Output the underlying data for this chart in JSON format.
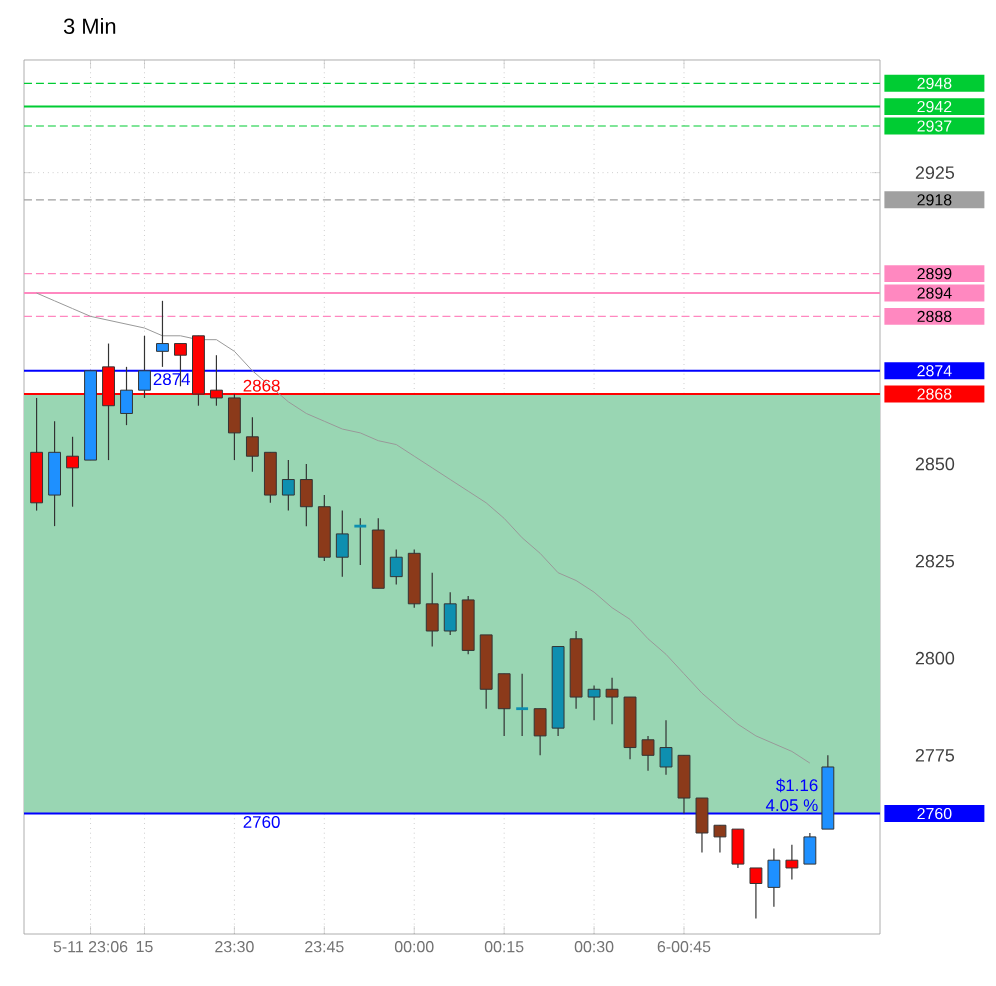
{
  "chart_data": {
    "type": "candlestick",
    "title": "3 Min",
    "categories": [
      null,
      null,
      null,
      "5-11 23:06",
      null,
      null,
      "15",
      null,
      null,
      null,
      null,
      "23:30",
      null,
      null,
      null,
      null,
      "23:45",
      null,
      null,
      null,
      null,
      "00:00",
      null,
      null,
      null,
      null,
      "00:15",
      null,
      null,
      null,
      null,
      "00:30",
      null,
      null,
      null,
      null,
      "6-00:45",
      null,
      null,
      null,
      null,
      null,
      null,
      null,
      null
    ],
    "ohlc": [
      [
        2853,
        2867,
        2838,
        2840
      ],
      [
        2842,
        2861,
        2834,
        2853
      ],
      [
        2852,
        2857,
        2839,
        2849
      ],
      [
        2851,
        2874,
        2851,
        2874
      ],
      [
        2875,
        2881,
        2851,
        2865
      ],
      [
        2863,
        2875,
        2860,
        2869
      ],
      [
        2869,
        2883,
        2867,
        2874
      ],
      [
        2879,
        2892,
        2875,
        2881
      ],
      [
        2881,
        2881,
        2870,
        2878
      ],
      [
        2883,
        2883,
        2865,
        2868
      ],
      [
        2869,
        2878,
        2865,
        2867
      ],
      [
        2867,
        2868,
        2851,
        2858
      ],
      [
        2857,
        2862,
        2848,
        2852
      ],
      [
        2853,
        2853,
        2840,
        2842
      ],
      [
        2842,
        2851,
        2838,
        2846
      ],
      [
        2846,
        2850,
        2834,
        2839
      ],
      [
        2839,
        2842,
        2825,
        2826
      ],
      [
        2826,
        2838,
        2821,
        2832
      ],
      [
        2834,
        2836,
        2824,
        2834
      ],
      [
        2833,
        2836,
        2818,
        2818
      ],
      [
        2821,
        2828,
        2819,
        2826
      ],
      [
        2827,
        2828,
        2813,
        2814
      ],
      [
        2814,
        2822,
        2803,
        2807
      ],
      [
        2807,
        2817,
        2806,
        2814
      ],
      [
        2815,
        2816,
        2801,
        2802
      ],
      [
        2806,
        2806,
        2787,
        2792
      ],
      [
        2796,
        2796,
        2780,
        2787
      ],
      [
        2787,
        2796,
        2780,
        2787
      ],
      [
        2787,
        2787,
        2775,
        2780
      ],
      [
        2782,
        2803,
        2780,
        2803
      ],
      [
        2805,
        2807,
        2787,
        2790
      ],
      [
        2790,
        2793,
        2784,
        2792
      ],
      [
        2792,
        2795,
        2783,
        2790
      ],
      [
        2790,
        2790,
        2774,
        2777
      ],
      [
        2779,
        2780,
        2771,
        2775
      ],
      [
        2772,
        2784,
        2770,
        2777
      ],
      [
        2775,
        2775,
        2760,
        2764
      ],
      [
        2764,
        2764,
        2750,
        2755
      ],
      [
        2757,
        2757,
        2750,
        2754
      ],
      [
        2756,
        2756,
        2746,
        2747
      ],
      [
        2746,
        2746,
        2733,
        2742
      ],
      [
        2741,
        2751,
        2736,
        2748
      ],
      [
        2748,
        2752,
        2743,
        2746
      ],
      [
        2747,
        2755,
        2747,
        2754
      ],
      [
        2756,
        2775,
        2756,
        2772
      ]
    ],
    "colors": [
      "#ff0000",
      "#1e90ff",
      "#ff0000",
      "#1e90ff",
      "#ff0000",
      "#1e90ff",
      "#1e90ff",
      "#1e90ff",
      "#ff0000",
      "#ff0000",
      "#ff0000",
      "#8b3a1a",
      "#8b3a1a",
      "#8b3a1a",
      "#0e8fb0",
      "#8b3a1a",
      "#8b3a1a",
      "#0e8fb0",
      "#0e8fb0",
      "#8b3a1a",
      "#0e8fb0",
      "#8b3a1a",
      "#8b3a1a",
      "#0e8fb0",
      "#8b3a1a",
      "#8b3a1a",
      "#8b3a1a",
      "#0e8fb0",
      "#8b3a1a",
      "#0e8fb0",
      "#8b3a1a",
      "#0e8fb0",
      "#8b3a1a",
      "#8b3a1a",
      "#8b3a1a",
      "#0e8fb0",
      "#8b3a1a",
      "#8b3a1a",
      "#8b3a1a",
      "#ff0000",
      "#ff0000",
      "#1e90ff",
      "#ff0000",
      "#1e90ff",
      "#1e90ff"
    ],
    "series": [
      {
        "type": "line",
        "color": "#999999",
        "values": [
          2894,
          2892,
          2890,
          2888,
          2887,
          2886,
          2885,
          2883,
          2883,
          2882,
          2882,
          2879,
          2874,
          2870,
          2866,
          2863,
          2861,
          2859,
          2858,
          2856,
          2855,
          2852,
          2849,
          2846,
          2843,
          2840,
          2836,
          2831,
          2827,
          2822,
          2820,
          2817,
          2813,
          2810,
          2805,
          2801,
          2796,
          2791,
          2787,
          2783,
          2780,
          2778,
          2776,
          2773,
          null
        ]
      }
    ],
    "ylim": [
      2729,
      2954
    ],
    "yticks": [
      2925,
      2850,
      2825,
      2800,
      2775
    ],
    "grid": true,
    "bands": [
      {
        "axis": "y",
        "from": 2760,
        "to": 2868,
        "color": "#99d6b3"
      }
    ],
    "ref_lines": [
      {
        "axis": "y",
        "value": 2948,
        "label": "2948",
        "color": "#00cc33",
        "line_style": "dashed"
      },
      {
        "axis": "y",
        "value": 2942,
        "label": "2942",
        "color": "#00cc33",
        "line_style": "solid"
      },
      {
        "axis": "y",
        "value": 2937,
        "label": "2937",
        "color": "#00cc33",
        "line_style": "dashed"
      },
      {
        "axis": "y",
        "value": 2918,
        "label": "2918",
        "color": "#a0a0a0",
        "line_style": "dashed"
      },
      {
        "axis": "y",
        "value": 2899,
        "label": "2899",
        "color": "#ff88c0",
        "line_style": "dashed"
      },
      {
        "axis": "y",
        "value": 2894,
        "label": "2894",
        "color": "#ff88c0",
        "line_style": "solid"
      },
      {
        "axis": "y",
        "value": 2888,
        "label": "2888",
        "color": "#ff88c0",
        "line_style": "dashed"
      },
      {
        "axis": "y",
        "value": 2874,
        "label": "2874",
        "color": "#0000ff",
        "line_style": "solid"
      },
      {
        "axis": "y",
        "value": 2868,
        "label": "2868",
        "color": "#ff0000",
        "line_style": "solid"
      },
      {
        "axis": "y",
        "value": 2760,
        "label": "2760",
        "color": "#0000ff",
        "line_style": "solid"
      }
    ],
    "annotations": [
      {
        "text": "2874",
        "x": "15",
        "y": 2874
      },
      {
        "text": "2868",
        "x": "23:30",
        "y": 2868
      },
      {
        "text": "2760",
        "x": "23:30",
        "y": 2760
      },
      "$1.16",
      "4.05 %"
    ]
  }
}
